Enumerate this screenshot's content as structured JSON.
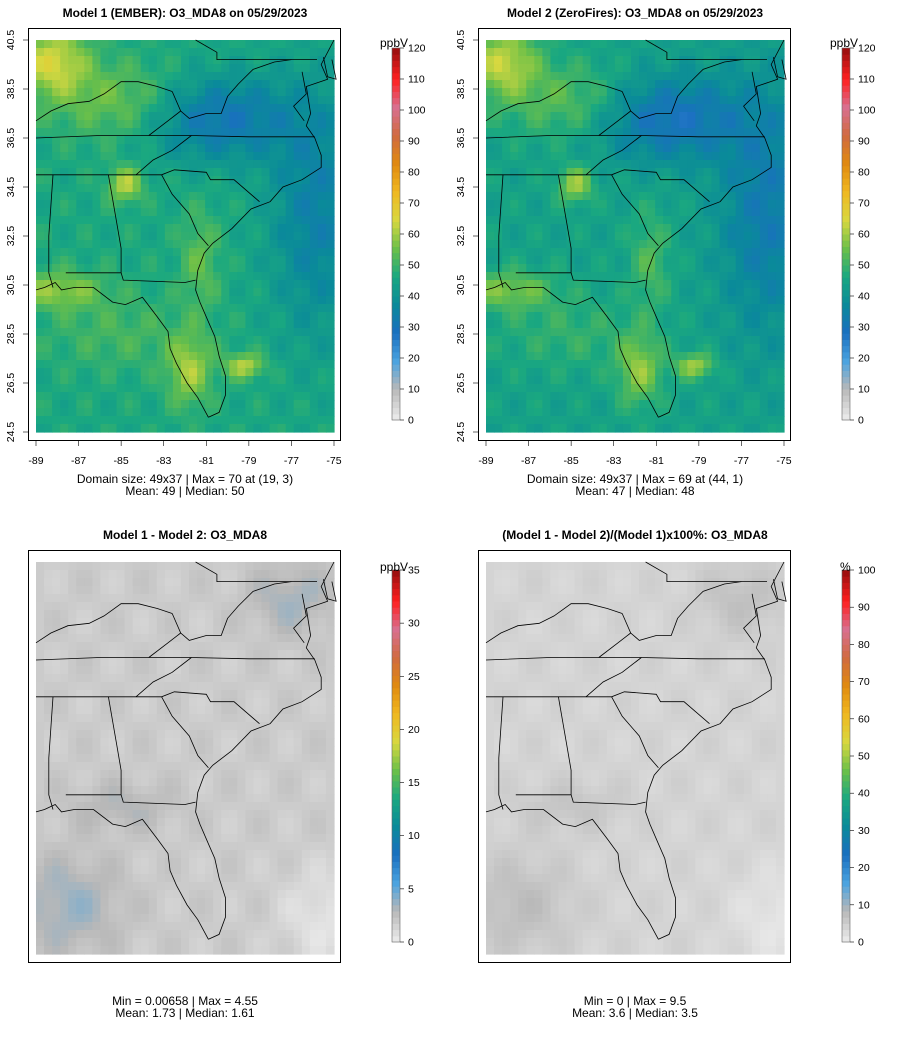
{
  "panels": [
    {
      "title": "Model 1 (EMBER): O3_MDA8 on 05/29/2023",
      "stats_line1": "Domain size: 49x37 | Max = 70 at (19, 3)",
      "stats_line2": "Mean: 49 |  Median: 50",
      "unit": "ppbV",
      "scale_min": 0,
      "scale_max": 120,
      "colorbar_ticks": [
        "0",
        "10",
        "20",
        "30",
        "40",
        "50",
        "60",
        "70",
        "80",
        "90",
        "100",
        "110",
        "120"
      ],
      "show_axes": true,
      "field": "ozone",
      "offset": 0
    },
    {
      "title": "Model 2 (ZeroFires): O3_MDA8 on 05/29/2023",
      "stats_line1": "Domain size: 49x37 | Max = 69 at (44, 1)",
      "stats_line2": "Mean: 47 |  Median: 48",
      "unit": "ppbV",
      "scale_min": 0,
      "scale_max": 120,
      "colorbar_ticks": [
        "0",
        "10",
        "20",
        "30",
        "40",
        "50",
        "60",
        "70",
        "80",
        "90",
        "100",
        "110",
        "120"
      ],
      "show_axes": true,
      "field": "ozone",
      "offset": -2
    },
    {
      "title": "Model 1 - Model 2: O3_MDA8",
      "stats_line1": "Min = 0.00658 | Max = 4.55",
      "stats_line2": "Mean: 1.73 |  Median: 1.61",
      "unit": "ppbV",
      "scale_min": 0,
      "scale_max": 35,
      "colorbar_ticks": [
        "0",
        "5",
        "10",
        "15",
        "20",
        "25",
        "30",
        "35"
      ],
      "show_axes": false,
      "field": "diff",
      "offset": 0
    },
    {
      "title": "(Model 1 - Model 2)/(Model 1)x100%: O3_MDA8",
      "stats_line1": "Min = 0 | Max = 9.5",
      "stats_line2": "Mean: 3.6 |  Median: 3.5",
      "unit": "%",
      "scale_min": 0,
      "scale_max": 100,
      "colorbar_ticks": [
        "0",
        "10",
        "20",
        "30",
        "40",
        "50",
        "60",
        "70",
        "80",
        "90",
        "100"
      ],
      "show_axes": false,
      "field": "pct",
      "offset": 0
    }
  ],
  "axes": {
    "lon_ticks": [
      "-89",
      "-87",
      "-85",
      "-83",
      "-81",
      "-79",
      "-77",
      "-75"
    ],
    "lat_ticks": [
      "24.5",
      "26.5",
      "28.5",
      "30.5",
      "32.5",
      "34.5",
      "36.5",
      "38.5",
      "40.5"
    ]
  },
  "chart_data": [
    {
      "type": "heatmap",
      "title": "Model 1 (EMBER): O3_MDA8 on 05/29/2023",
      "grid": [
        49,
        37
      ],
      "units": "ppbV",
      "colorbar_range": [
        0,
        120
      ],
      "xlim": [
        -89,
        -75
      ],
      "ylim": [
        24.5,
        40.5
      ],
      "max": 70,
      "max_at": [
        19,
        3
      ],
      "mean": 49,
      "median": 50
    },
    {
      "type": "heatmap",
      "title": "Model 2 (ZeroFires): O3_MDA8 on 05/29/2023",
      "grid": [
        49,
        37
      ],
      "units": "ppbV",
      "colorbar_range": [
        0,
        120
      ],
      "xlim": [
        -89,
        -75
      ],
      "ylim": [
        24.5,
        40.5
      ],
      "max": 69,
      "max_at": [
        44,
        1
      ],
      "mean": 47,
      "median": 48
    },
    {
      "type": "heatmap",
      "title": "Model 1 - Model 2: O3_MDA8",
      "units": "ppbV",
      "colorbar_range": [
        0,
        35
      ],
      "min": 0.00658,
      "max": 4.55,
      "mean": 1.73,
      "median": 1.61
    },
    {
      "type": "heatmap",
      "title": "(Model 1 - Model 2)/(Model 1)x100%: O3_MDA8",
      "units": "%",
      "colorbar_range": [
        0,
        100
      ],
      "min": 0,
      "max": 9.5,
      "mean": 3.6,
      "median": 3.5
    }
  ],
  "colors": {
    "palette": [
      "#e8e8e8",
      "#b8b8b8",
      "#4aa3e0",
      "#1a6fc0",
      "#0a8a9a",
      "#1aa880",
      "#6cc048",
      "#d8d840",
      "#f0b820",
      "#e08a10",
      "#d06a40",
      "#d87090",
      "#ff2020",
      "#a01010"
    ],
    "border": "#000000"
  }
}
